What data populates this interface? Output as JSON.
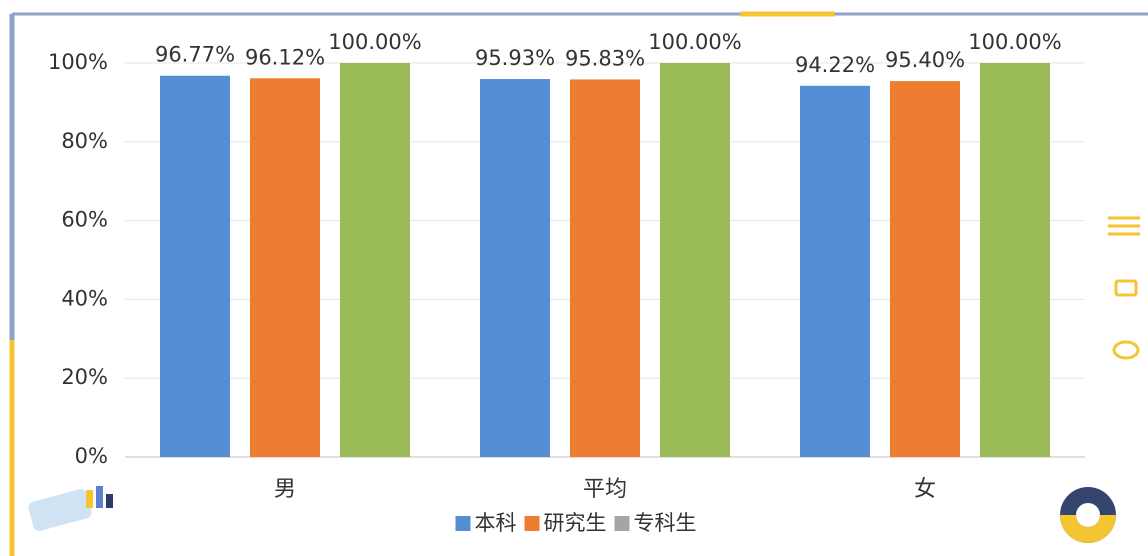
{
  "chart_data": {
    "type": "bar",
    "categories": [
      "男",
      "平均",
      "女"
    ],
    "series": [
      {
        "name": "本科",
        "color": "#558ed5",
        "values": [
          96.77,
          95.93,
          94.22
        ],
        "value_labels": [
          "96.77%",
          "95.93%",
          "94.22%"
        ]
      },
      {
        "name": "研究生",
        "color": "#ed7d31",
        "values": [
          96.12,
          95.83,
          95.4
        ],
        "value_labels": [
          "96.12%",
          "95.83%",
          "95.40%"
        ]
      },
      {
        "name": "专科生",
        "color": "#9bbb59",
        "legend_color": "#a5a5a5",
        "values": [
          100,
          100,
          100
        ],
        "value_labels": [
          "100.00%",
          "100.00%",
          "100.00%"
        ]
      }
    ],
    "ylim": [
      0,
      100
    ],
    "yticks": [
      {
        "value": 0,
        "label": "0%"
      },
      {
        "value": 20,
        "label": "20%"
      },
      {
        "value": 40,
        "label": "40%"
      },
      {
        "value": 60,
        "label": "60%"
      },
      {
        "value": 80,
        "label": "80%"
      },
      {
        "value": 100,
        "label": "100%"
      }
    ],
    "grid": true
  }
}
